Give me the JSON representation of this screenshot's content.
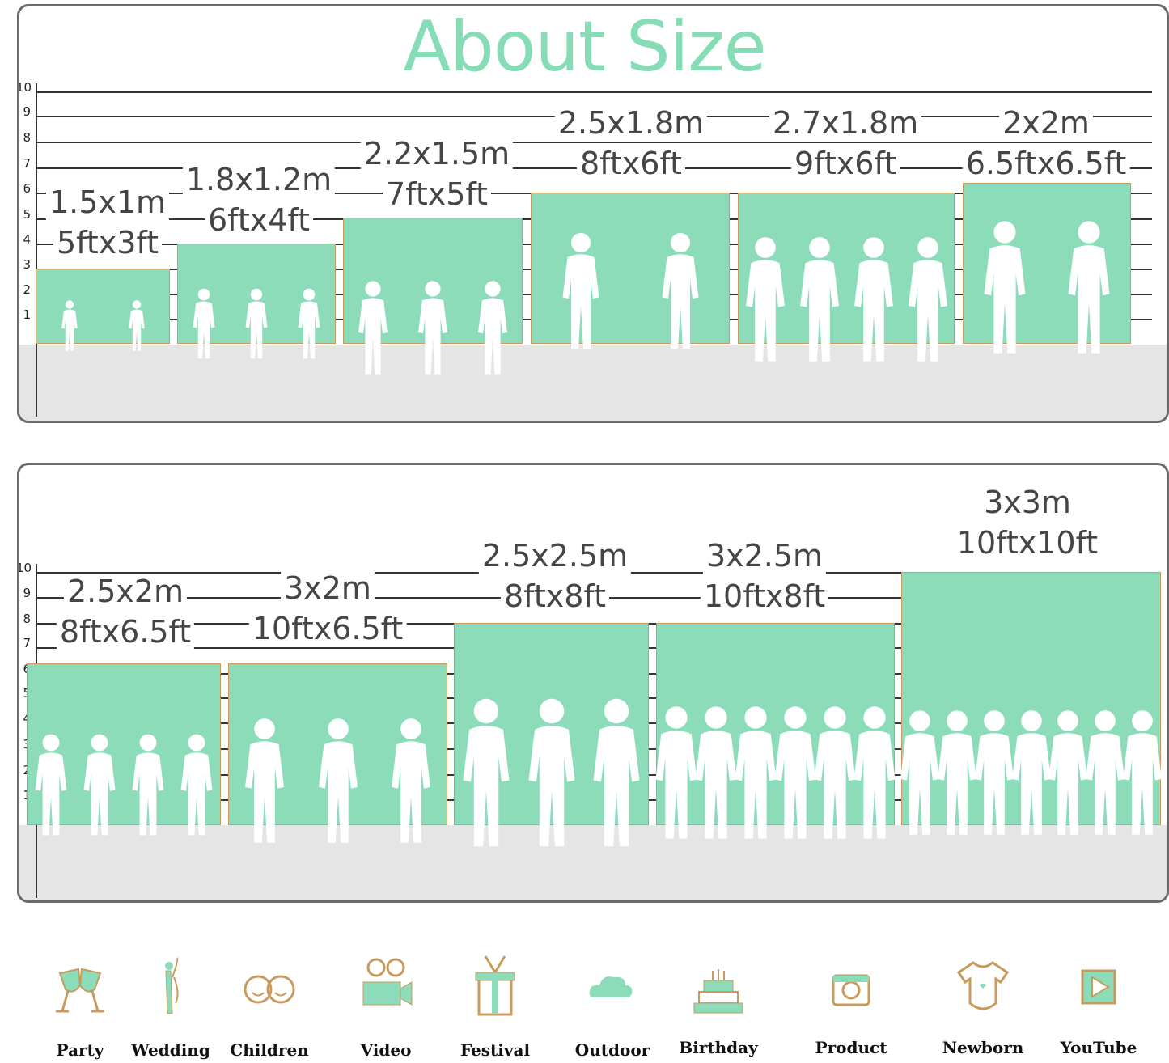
{
  "title": "About Size",
  "colors": {
    "backdrop": "#8cdcba",
    "title": "#86dcb5",
    "border": "#c99a5e",
    "floor": "#e5e5e5"
  },
  "scale_ticks": [
    "10",
    "9",
    "8",
    "7",
    "6",
    "5",
    "4",
    "3",
    "2",
    "1"
  ],
  "row1": [
    {
      "metric": "1.5x1m",
      "imperial": "5ftx3ft"
    },
    {
      "metric": "1.8x1.2m",
      "imperial": "6ftx4ft"
    },
    {
      "metric": "2.2x1.5m",
      "imperial": "7ftx5ft"
    },
    {
      "metric": "2.5x1.8m",
      "imperial": "8ftx6ft"
    },
    {
      "metric": "2.7x1.8m",
      "imperial": "9ftx6ft"
    },
    {
      "metric": "2x2m",
      "imperial": "6.5ftx6.5ft"
    }
  ],
  "row2": [
    {
      "metric": "2.5x2m",
      "imperial": "8ftx6.5ft"
    },
    {
      "metric": "3x2m",
      "imperial": "10ftx6.5ft"
    },
    {
      "metric": "2.5x2.5m",
      "imperial": "8ftx8ft"
    },
    {
      "metric": "3x2.5m",
      "imperial": "10ftx8ft"
    },
    {
      "metric": "3x3m",
      "imperial": "10ftx10ft"
    }
  ],
  "uses": [
    {
      "label": "Party",
      "icon": "wine-glasses-icon"
    },
    {
      "label": "Wedding",
      "icon": "wedding-couple-icon"
    },
    {
      "label": "Children",
      "icon": "children-faces-icon"
    },
    {
      "label": "Video",
      "icon": "movie-camera-icon"
    },
    {
      "label": "Festival",
      "icon": "gift-box-icon"
    },
    {
      "label": "Outdoor",
      "icon": "cloud-icon"
    },
    {
      "label": "Birthday",
      "icon": "birthday-cake-icon"
    },
    {
      "label": "Product",
      "icon": "camera-icon"
    },
    {
      "label": "Newborn",
      "icon": "baby-onesie-icon"
    },
    {
      "label": "YouTube",
      "icon": "play-button-icon"
    }
  ]
}
